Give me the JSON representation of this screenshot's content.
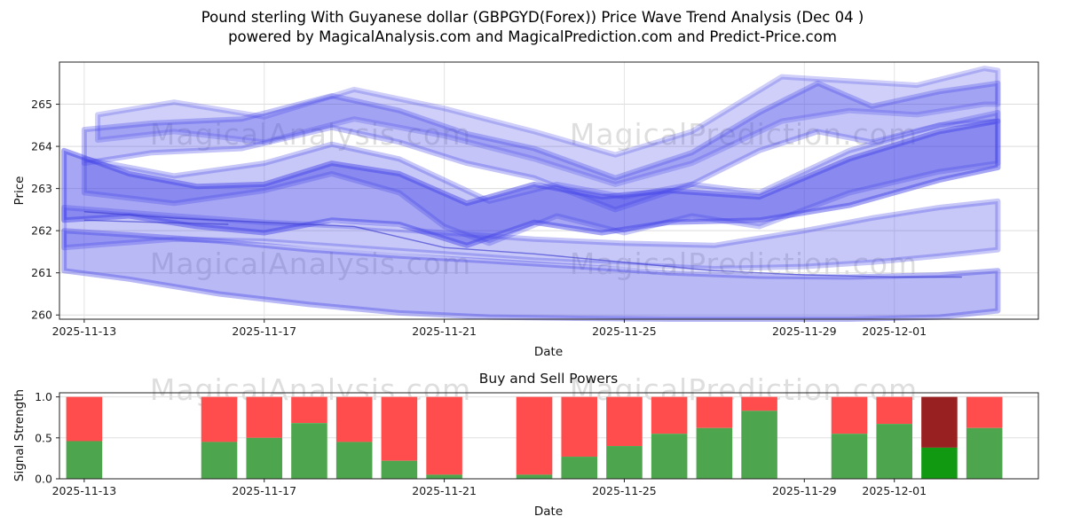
{
  "title_line1": "Pound sterling With Guyanese dollar (GBPGYD(Forex)) Price Wave Trend Analysis (Dec 04 )",
  "title_line2": "powered by MagicalAnalysis.com and MagicalPrediction.com and Predict-Price.com",
  "watermarks": {
    "left_text": "MagicalAnalysis.com",
    "right_text": "MagicalPrediction.com"
  },
  "chart_data": [
    {
      "type": "area",
      "title": "",
      "xlabel": "Date",
      "ylabel": "Price",
      "ylim": [
        259.9,
        266.0
      ],
      "yticks": [
        260,
        261,
        262,
        263,
        264,
        265
      ],
      "xlim_days": [
        -0.55,
        21.2
      ],
      "xticks": [
        {
          "day": 0,
          "label": "2025-11-13"
        },
        {
          "day": 4,
          "label": "2025-11-17"
        },
        {
          "day": 8,
          "label": "2025-11-21"
        },
        {
          "day": 12,
          "label": "2025-11-25"
        },
        {
          "day": 16,
          "label": "2025-11-29"
        },
        {
          "day": 18,
          "label": "2025-12-01"
        }
      ],
      "grid": true,
      "band_color": "#4646e8",
      "line_color": "#3c3cd0",
      "bands": [
        {
          "opacity": 0.38,
          "x": [
            -0.45,
            1,
            3,
            5,
            7,
            9,
            11,
            13,
            15,
            17,
            19,
            20.3
          ],
          "lower": [
            261.05,
            260.85,
            260.5,
            260.25,
            260.05,
            259.95,
            259.92,
            259.9,
            259.9,
            259.9,
            259.95,
            260.1
          ],
          "upper": [
            262.0,
            261.9,
            261.75,
            261.55,
            261.4,
            261.28,
            261.15,
            261.0,
            260.92,
            260.9,
            260.95,
            261.05
          ]
        },
        {
          "opacity": 0.3,
          "x": [
            -0.45,
            2,
            4,
            6,
            8,
            10,
            12,
            14,
            16,
            17.5,
            19,
            20.3
          ],
          "lower": [
            261.6,
            261.8,
            261.75,
            261.6,
            261.45,
            261.3,
            261.2,
            261.1,
            261.15,
            261.25,
            261.4,
            261.55
          ],
          "upper": [
            262.55,
            262.35,
            262.2,
            262.1,
            261.95,
            261.8,
            261.7,
            261.65,
            262.0,
            262.3,
            262.55,
            262.7
          ]
        },
        {
          "opacity": 0.48,
          "x": [
            -0.45,
            1,
            2.5,
            4,
            5.5,
            7,
            8.5,
            10,
            11.5,
            13,
            15,
            17,
            19,
            20.3
          ],
          "lower": [
            262.25,
            262.35,
            262.1,
            261.95,
            262.25,
            262.15,
            261.65,
            262.2,
            261.95,
            262.2,
            262.25,
            262.6,
            263.2,
            263.5
          ],
          "upper": [
            263.9,
            263.35,
            263.05,
            263.1,
            263.6,
            263.35,
            262.65,
            263.1,
            262.8,
            262.95,
            262.8,
            263.7,
            264.35,
            264.6
          ]
        },
        {
          "opacity": 0.3,
          "x": [
            0,
            2,
            4,
            5.5,
            7,
            8,
            9,
            10.5,
            12,
            13.5,
            15,
            17,
            19,
            20.3
          ],
          "lower": [
            262.9,
            262.65,
            262.95,
            263.35,
            262.9,
            262.1,
            261.7,
            262.35,
            261.95,
            262.35,
            262.1,
            262.9,
            263.4,
            263.6
          ],
          "upper": [
            263.7,
            263.3,
            263.6,
            264.05,
            263.7,
            263.2,
            262.7,
            263.1,
            262.8,
            263.1,
            262.9,
            263.9,
            264.5,
            264.8
          ]
        },
        {
          "opacity": 0.32,
          "x": [
            0,
            1.5,
            3.5,
            5.5,
            7,
            8.5,
            10,
            11.8,
            13.5,
            15,
            16.3,
            17.5,
            19,
            20.3
          ],
          "lower": [
            263.6,
            263.85,
            263.95,
            264.45,
            264.1,
            263.6,
            263.25,
            262.5,
            263.1,
            263.9,
            264.35,
            264.1,
            264.5,
            264.6
          ],
          "upper": [
            264.4,
            264.55,
            264.65,
            265.2,
            264.85,
            264.3,
            263.95,
            263.25,
            263.85,
            264.8,
            265.5,
            264.95,
            265.3,
            265.5
          ]
        },
        {
          "opacity": 0.26,
          "x": [
            0.3,
            2,
            4,
            6,
            8,
            10,
            11.8,
            13.5,
            15.5,
            17,
            18.5,
            20,
            20.3
          ],
          "lower": [
            264.15,
            264.35,
            264.1,
            264.65,
            264.25,
            263.7,
            263.1,
            263.6,
            264.6,
            264.85,
            264.75,
            265.0,
            265.0
          ],
          "upper": [
            264.75,
            265.05,
            264.7,
            265.35,
            264.9,
            264.35,
            263.8,
            264.35,
            265.65,
            265.55,
            265.45,
            265.85,
            265.8
          ]
        }
      ],
      "lines": [
        {
          "x": [
            0,
            2,
            4,
            6,
            8,
            10,
            12,
            14,
            16,
            18,
            19.5
          ],
          "y": [
            262.45,
            262.3,
            262.2,
            262.1,
            261.6,
            261.45,
            261.25,
            261.05,
            260.95,
            260.9,
            260.9
          ]
        },
        {
          "x": [
            0,
            1.5,
            3.2
          ],
          "y": [
            262.25,
            262.2,
            262.15
          ]
        }
      ]
    },
    {
      "type": "bar",
      "title": "Buy and Sell Powers",
      "xlabel": "Date",
      "ylabel": "Signal Strength",
      "ylim": [
        0,
        1.05
      ],
      "yticks": [
        0.0,
        0.5,
        1.0
      ],
      "xticks": [
        {
          "day": 0,
          "label": "2025-11-13"
        },
        {
          "day": 4,
          "label": "2025-11-17"
        },
        {
          "day": 8,
          "label": "2025-11-21"
        },
        {
          "day": 12,
          "label": "2025-11-25"
        },
        {
          "day": 16,
          "label": "2025-11-29"
        },
        {
          "day": 18,
          "label": "2025-12-01"
        }
      ],
      "bar_width_days": 0.8,
      "colors": {
        "green": "#4da64d",
        "red": "#ff4d4d",
        "dark_green": "#119911",
        "dark_red": "#992020"
      },
      "bars": [
        {
          "day": 0,
          "date": "2025-11-13",
          "green": 0.46,
          "red": 0.54,
          "highlight": false
        },
        {
          "day": 3,
          "date": "2025-11-16",
          "green": 0.45,
          "red": 0.55,
          "highlight": false
        },
        {
          "day": 4,
          "date": "2025-11-17",
          "green": 0.5,
          "red": 0.5,
          "highlight": false
        },
        {
          "day": 5,
          "date": "2025-11-18",
          "green": 0.68,
          "red": 0.32,
          "highlight": false
        },
        {
          "day": 6,
          "date": "2025-11-19",
          "green": 0.45,
          "red": 0.55,
          "highlight": false
        },
        {
          "day": 7,
          "date": "2025-11-20",
          "green": 0.22,
          "red": 0.78,
          "highlight": false
        },
        {
          "day": 8,
          "date": "2025-11-21",
          "green": 0.05,
          "red": 0.95,
          "highlight": false
        },
        {
          "day": 10,
          "date": "2025-11-23",
          "green": 0.05,
          "red": 0.95,
          "highlight": false
        },
        {
          "day": 11,
          "date": "2025-11-24",
          "green": 0.27,
          "red": 0.73,
          "highlight": false
        },
        {
          "day": 12,
          "date": "2025-11-25",
          "green": 0.4,
          "red": 0.6,
          "highlight": false
        },
        {
          "day": 13,
          "date": "2025-11-26",
          "green": 0.55,
          "red": 0.45,
          "highlight": false
        },
        {
          "day": 14,
          "date": "2025-11-27",
          "green": 0.62,
          "red": 0.38,
          "highlight": false
        },
        {
          "day": 15,
          "date": "2025-11-28",
          "green": 0.83,
          "red": 0.17,
          "highlight": false
        },
        {
          "day": 17,
          "date": "2025-11-30",
          "green": 0.55,
          "red": 0.45,
          "highlight": false
        },
        {
          "day": 18,
          "date": "2025-12-01",
          "green": 0.67,
          "red": 0.33,
          "highlight": false
        },
        {
          "day": 19,
          "date": "2025-12-02",
          "green": 0.38,
          "red": 0.62,
          "highlight": true
        },
        {
          "day": 20,
          "date": "2025-12-03",
          "green": 0.62,
          "red": 0.38,
          "highlight": false
        }
      ]
    }
  ]
}
